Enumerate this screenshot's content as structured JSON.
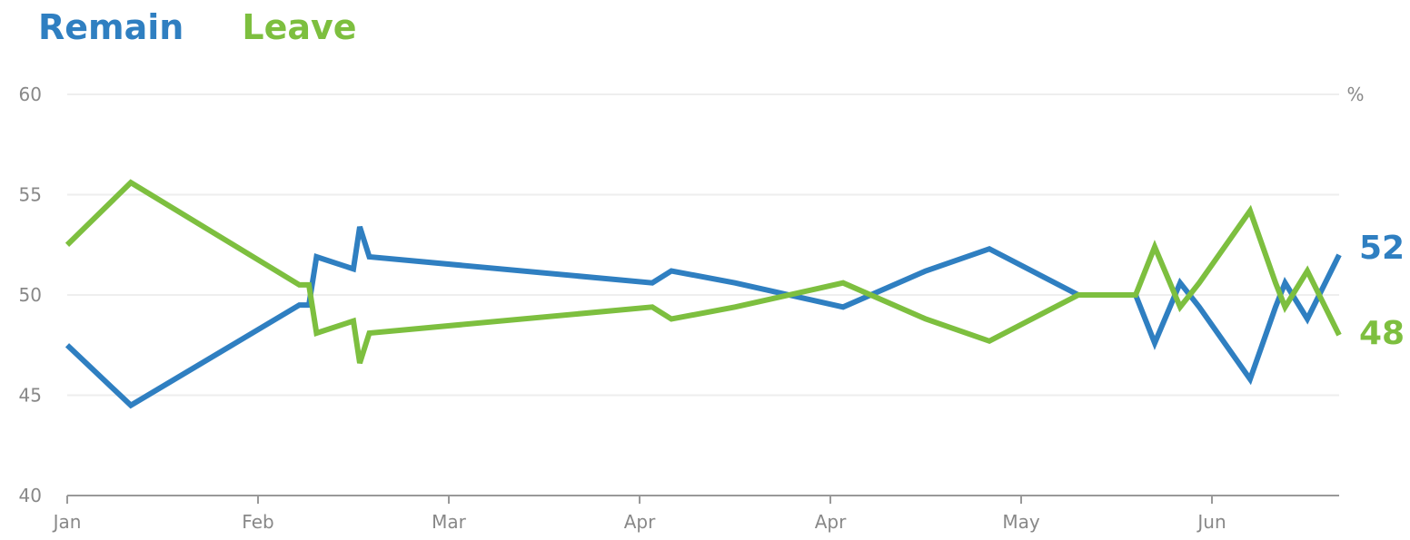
{
  "legend": {
    "remain": "Remain",
    "leave": "Leave"
  },
  "colors": {
    "remain": "#2f7fc1",
    "leave": "#7dbf3f",
    "grid": "#eeeeee",
    "axis": "#999999",
    "tick_text": "#888888"
  },
  "chart_data": {
    "type": "line",
    "title": "",
    "xlabel": "",
    "ylabel": "%",
    "ylim": [
      40,
      60
    ],
    "yticks": [
      40,
      45,
      50,
      55,
      60
    ],
    "xlim": [
      0,
      20
    ],
    "xticks": [
      {
        "pos": 0,
        "label": "Jan"
      },
      {
        "pos": 3,
        "label": "Feb"
      },
      {
        "pos": 6,
        "label": "Mar"
      },
      {
        "pos": 9,
        "label": "Apr"
      },
      {
        "pos": 12,
        "label": "Apr"
      },
      {
        "pos": 15,
        "label": "May"
      },
      {
        "pos": 18,
        "label": "Jun"
      }
    ],
    "grid": true,
    "series": [
      {
        "name": "Remain",
        "color": "#2f7fc1",
        "end_label": "52",
        "points": [
          [
            0,
            47.5
          ],
          [
            1,
            44.5
          ],
          [
            3.65,
            49.5
          ],
          [
            3.8,
            49.5
          ],
          [
            3.92,
            51.9
          ],
          [
            4.5,
            51.3
          ],
          [
            4.6,
            53.4
          ],
          [
            4.75,
            51.9
          ],
          [
            9.2,
            50.6
          ],
          [
            9.5,
            51.2
          ],
          [
            10.5,
            50.6
          ],
          [
            12.2,
            49.4
          ],
          [
            13.5,
            51.2
          ],
          [
            14.5,
            52.3
          ],
          [
            15.9,
            50.0
          ],
          [
            16.8,
            50.0
          ],
          [
            17.1,
            47.6
          ],
          [
            17.5,
            50.6
          ],
          [
            17.8,
            49.4
          ],
          [
            18.6,
            45.8
          ],
          [
            19.0,
            49.4
          ],
          [
            19.15,
            50.6
          ],
          [
            19.5,
            48.8
          ],
          [
            20,
            52.0
          ]
        ]
      },
      {
        "name": "Leave",
        "color": "#7dbf3f",
        "end_label": "48",
        "points": [
          [
            0,
            52.5
          ],
          [
            1,
            55.6
          ],
          [
            3.65,
            50.5
          ],
          [
            3.8,
            50.5
          ],
          [
            3.92,
            48.1
          ],
          [
            4.5,
            48.7
          ],
          [
            4.6,
            46.6
          ],
          [
            4.75,
            48.1
          ],
          [
            9.2,
            49.4
          ],
          [
            9.5,
            48.8
          ],
          [
            10.5,
            49.4
          ],
          [
            12.2,
            50.6
          ],
          [
            13.5,
            48.8
          ],
          [
            14.5,
            47.7
          ],
          [
            15.9,
            50.0
          ],
          [
            16.8,
            50.0
          ],
          [
            17.1,
            52.4
          ],
          [
            17.5,
            49.4
          ],
          [
            17.8,
            50.6
          ],
          [
            18.6,
            54.2
          ],
          [
            19.0,
            50.6
          ],
          [
            19.15,
            49.4
          ],
          [
            19.5,
            51.2
          ],
          [
            20,
            48.0
          ]
        ]
      }
    ]
  }
}
